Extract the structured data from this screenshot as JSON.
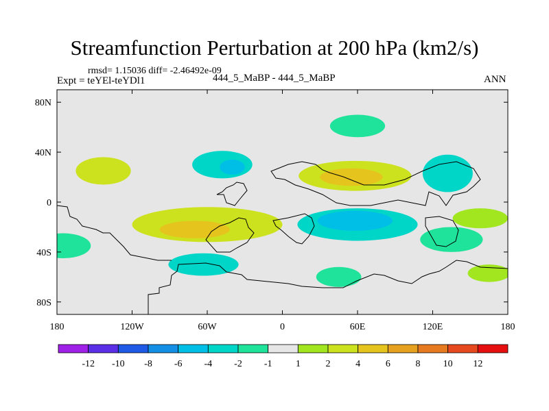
{
  "header": {
    "title": "Streamfunction Perturbation at 200 hPa (km2/s)",
    "stats": "rmsd= 1.15036 diff= -2.46492e-09",
    "experiment": "Expt = teYEl-teYDl1",
    "center_label": "444_5_MaBP - 444_5_MaBP",
    "season": "ANN"
  },
  "chart_data": {
    "type": "heatmap",
    "title": "Streamfunction Perturbation at 200 hPa (km2/s)",
    "projection": "cylindrical equidistant",
    "xlim": [
      -180,
      180
    ],
    "ylim": [
      -90,
      90
    ],
    "x_ticks": [
      {
        "value": -180,
        "label": "180"
      },
      {
        "value": -120,
        "label": "120W"
      },
      {
        "value": -60,
        "label": "60W"
      },
      {
        "value": 0,
        "label": "0"
      },
      {
        "value": 60,
        "label": "60E"
      },
      {
        "value": 120,
        "label": "120E"
      },
      {
        "value": 180,
        "label": "180"
      }
    ],
    "y_ticks": [
      {
        "value": 80,
        "label": "80N"
      },
      {
        "value": 40,
        "label": "40N"
      },
      {
        "value": 0,
        "label": "0"
      },
      {
        "value": -40,
        "label": "40S"
      },
      {
        "value": -80,
        "label": "80S"
      }
    ],
    "levels": [
      -12,
      -10,
      -8,
      -6,
      -4,
      -2,
      -1,
      1,
      2,
      4,
      6,
      8,
      10,
      12
    ],
    "level_labels": [
      "-12",
      "-10",
      "-8",
      "-6",
      "-4",
      "-2",
      "-1",
      "1",
      "2",
      "4",
      "6",
      "8",
      "10",
      "12"
    ],
    "colors": [
      "#9f20e6",
      "#5a2fe6",
      "#1e5ae6",
      "#138fe6",
      "#00bfe6",
      "#00d6c8",
      "#20e39b",
      "#e6e6e6",
      "#a1e61e",
      "#cde21e",
      "#e6c41e",
      "#e6a21e",
      "#e67a1e",
      "#e6491e",
      "#e60f0f"
    ],
    "features": [
      {
        "name": "north-pacific-high",
        "center": [
          -143,
          25
        ],
        "radius": [
          22,
          11
        ],
        "band": "2 to 4"
      },
      {
        "name": "north-atlantic-low",
        "center": [
          -48,
          30
        ],
        "radius": [
          24,
          11
        ],
        "band": "-4 to -2"
      },
      {
        "name": "north-atlantic-low-core",
        "center": [
          -40,
          28
        ],
        "radius": [
          10,
          6
        ],
        "band": "-6 to -4"
      },
      {
        "name": "siberia-low",
        "center": [
          60,
          61
        ],
        "radius": [
          22,
          9
        ],
        "band": "-2 to -1"
      },
      {
        "name": "eurasia-high",
        "center": [
          58,
          21
        ],
        "radius": [
          45,
          12
        ],
        "band": "2 to 4"
      },
      {
        "name": "eurasia-high-core",
        "center": [
          55,
          20
        ],
        "radius": [
          25,
          7
        ],
        "band": "4 to 6"
      },
      {
        "name": "north-pacific-low",
        "center": [
          132,
          23
        ],
        "radius": [
          20,
          15
        ],
        "band": "-4 to -2"
      },
      {
        "name": "south-pacific-high",
        "center": [
          -60,
          -18
        ],
        "radius": [
          60,
          14
        ],
        "band": "2 to 4"
      },
      {
        "name": "south-pacific-high-core",
        "center": [
          -70,
          -22
        ],
        "radius": [
          28,
          7
        ],
        "band": "4 to 6"
      },
      {
        "name": "indian-ocean-low",
        "center": [
          60,
          -18
        ],
        "radius": [
          48,
          13
        ],
        "band": "-4 to -2"
      },
      {
        "name": "indian-ocean-low-core",
        "center": [
          58,
          -15
        ],
        "radius": [
          30,
          8
        ],
        "band": "-6 to -4"
      },
      {
        "name": "south-pacific-low",
        "center": [
          -175,
          -35
        ],
        "radius": [
          22,
          10
        ],
        "band": "-2 to -1"
      },
      {
        "name": "southern-ocean-low",
        "center": [
          -63,
          -50
        ],
        "radius": [
          28,
          9
        ],
        "band": "-4 to -2"
      },
      {
        "name": "south-atlantic-low",
        "center": [
          45,
          -60
        ],
        "radius": [
          18,
          8
        ],
        "band": "-2 to -1"
      },
      {
        "name": "australia-low",
        "center": [
          135,
          -30
        ],
        "radius": [
          25,
          10
        ],
        "band": "-2 to -1"
      },
      {
        "name": "south-indian-high",
        "center": [
          158,
          -13
        ],
        "radius": [
          22,
          8
        ],
        "band": "1 to 2"
      },
      {
        "name": "southern-high",
        "center": [
          165,
          -57
        ],
        "radius": [
          17,
          7
        ],
        "band": "1 to 2"
      }
    ]
  }
}
